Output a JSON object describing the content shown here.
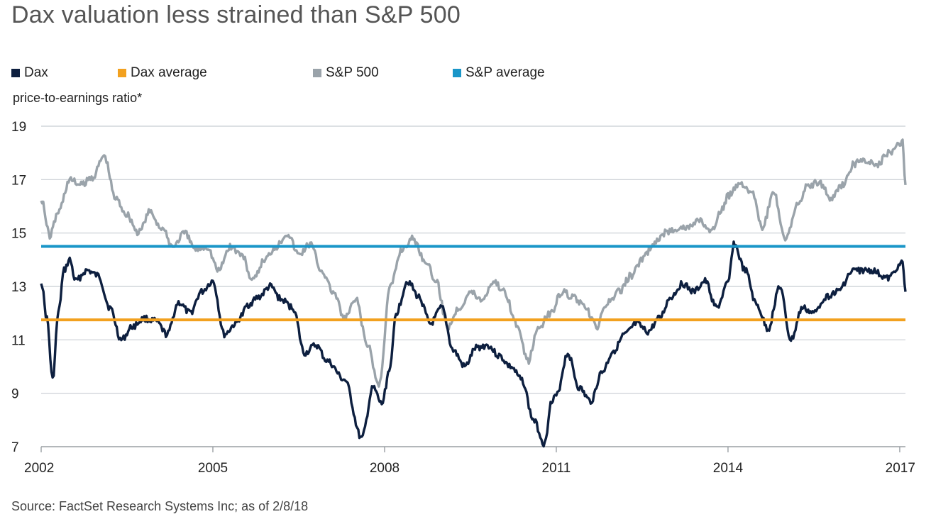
{
  "title": "Dax valuation less strained than S&P 500",
  "source": "Source: FactSet Research Systems Inc; as of 2/8/18",
  "colors": {
    "dax": "#0d1f3f",
    "dax_average": "#f2a11f",
    "sp500": "#9aa3aa",
    "sp_average": "#1a96c8",
    "grid": "#c8cdd2",
    "axis": "#9a9fa4"
  },
  "legend": [
    {
      "key": "dax",
      "label": "Dax"
    },
    {
      "key": "dax_average",
      "label": "Dax average"
    },
    {
      "key": "sp500",
      "label": "S&P 500"
    },
    {
      "key": "sp_average",
      "label": "S&P average"
    }
  ],
  "chart_data": {
    "type": "line",
    "title": "Dax valuation less strained than S&P 500",
    "xlabel": "",
    "ylabel": "price-to-earnings ratio*",
    "xlim": [
      2002.0,
      2017.1
    ],
    "ylim": [
      7,
      19
    ],
    "yticks": [
      7,
      9,
      11,
      13,
      15,
      17,
      19
    ],
    "xticks": [
      {
        "value": 2002,
        "label": "2002"
      },
      {
        "value": 2005,
        "label": "2005"
      },
      {
        "value": 2008,
        "label": "2008"
      },
      {
        "value": 2011,
        "label": "2011"
      },
      {
        "value": 2014,
        "label": "2014"
      },
      {
        "value": 2017,
        "label": "2017"
      }
    ],
    "grid": true,
    "legend_position": "top",
    "series": [
      {
        "name": "Dax",
        "key": "dax",
        "x": [
          2002.0,
          2002.1,
          2002.2,
          2002.3,
          2002.4,
          2002.5,
          2002.6,
          2002.8,
          2003.0,
          2003.2,
          2003.4,
          2003.6,
          2003.8,
          2004.0,
          2004.2,
          2004.4,
          2004.6,
          2004.8,
          2005.0,
          2005.2,
          2005.4,
          2005.5,
          2005.6,
          2005.8,
          2006.0,
          2006.2,
          2006.4,
          2006.6,
          2006.8,
          2007.0,
          2007.3,
          2007.6,
          2007.8,
          2007.95,
          2008.1,
          2008.2,
          2008.4,
          2008.6,
          2008.8,
          2009.0,
          2009.2,
          2009.4,
          2009.6,
          2009.8,
          2010.0,
          2010.2,
          2010.4,
          2010.6,
          2010.8,
          2010.9,
          2011.0,
          2011.2,
          2011.4,
          2011.6,
          2011.8,
          2012.0,
          2012.2,
          2012.4,
          2012.6,
          2012.8,
          2013.0,
          2013.2,
          2013.4,
          2013.6,
          2013.8,
          2014.0,
          2014.1,
          2014.3,
          2014.5,
          2014.7,
          2014.9,
          2015.1,
          2015.3,
          2015.5,
          2015.7,
          2015.9,
          2016.2,
          2016.5,
          2016.8,
          2017.0,
          2017.05,
          2017.1
        ],
        "values": [
          13.2,
          11.8,
          9.5,
          12.0,
          13.6,
          14.0,
          13.2,
          13.6,
          13.4,
          12.2,
          11.0,
          11.5,
          11.8,
          11.7,
          11.2,
          12.4,
          12.0,
          12.8,
          13.2,
          11.2,
          11.6,
          11.9,
          12.3,
          12.6,
          13.0,
          12.5,
          12.2,
          10.5,
          10.8,
          10.2,
          9.5,
          7.3,
          9.2,
          8.6,
          10.0,
          12.0,
          13.2,
          12.6,
          11.6,
          12.2,
          10.6,
          10.0,
          10.7,
          10.8,
          10.4,
          10.0,
          9.5,
          8.0,
          7.1,
          8.6,
          8.9,
          10.5,
          9.2,
          8.7,
          9.8,
          10.6,
          11.2,
          11.6,
          11.3,
          11.8,
          12.6,
          13.1,
          12.8,
          13.2,
          12.2,
          13.1,
          14.6,
          13.6,
          12.3,
          11.4,
          13.0,
          11.0,
          12.2,
          12.0,
          12.6,
          12.8,
          13.6,
          13.6,
          13.3,
          13.8,
          13.9,
          12.8
        ]
      },
      {
        "name": "Dax average",
        "key": "dax_average",
        "x": [
          2002.0,
          2017.1
        ],
        "values": [
          11.75,
          11.75
        ]
      },
      {
        "name": "S&P 500",
        "key": "sp500",
        "x": [
          2002.0,
          2002.15,
          2002.3,
          2002.5,
          2002.7,
          2002.9,
          2003.1,
          2003.3,
          2003.5,
          2003.7,
          2003.9,
          2004.1,
          2004.3,
          2004.5,
          2004.7,
          2004.9,
          2005.1,
          2005.3,
          2005.5,
          2005.7,
          2005.9,
          2006.1,
          2006.3,
          2006.5,
          2006.7,
          2006.9,
          2007.1,
          2007.3,
          2007.5,
          2007.7,
          2007.9,
          2008.1,
          2008.3,
          2008.5,
          2008.7,
          2008.9,
          2009.1,
          2009.3,
          2009.5,
          2009.7,
          2009.9,
          2010.1,
          2010.3,
          2010.5,
          2010.7,
          2010.9,
          2011.1,
          2011.3,
          2011.5,
          2011.7,
          2011.9,
          2012.1,
          2012.3,
          2012.5,
          2012.7,
          2012.9,
          2013.1,
          2013.3,
          2013.5,
          2013.7,
          2013.9,
          2014.0,
          2014.2,
          2014.4,
          2014.6,
          2014.8,
          2015.0,
          2015.2,
          2015.4,
          2015.6,
          2015.8,
          2016.0,
          2016.2,
          2016.4,
          2016.6,
          2016.8,
          2017.0,
          2017.05,
          2017.1
        ],
        "values": [
          16.3,
          14.9,
          15.8,
          17.0,
          16.8,
          17.1,
          17.9,
          16.3,
          15.7,
          15.0,
          15.8,
          15.2,
          14.5,
          15.0,
          14.4,
          14.5,
          13.6,
          14.5,
          14.2,
          13.2,
          14.0,
          14.5,
          15.0,
          14.2,
          14.6,
          13.6,
          12.8,
          11.8,
          12.5,
          10.8,
          9.3,
          13.0,
          14.4,
          14.8,
          14.0,
          13.2,
          11.5,
          12.2,
          12.8,
          12.5,
          13.2,
          12.8,
          11.6,
          10.2,
          11.5,
          12.0,
          12.8,
          12.6,
          12.2,
          11.5,
          12.4,
          12.8,
          13.4,
          14.0,
          14.6,
          15.0,
          15.2,
          15.2,
          15.5,
          15.0,
          15.9,
          16.4,
          16.9,
          16.6,
          15.2,
          16.5,
          14.7,
          16.0,
          16.8,
          16.9,
          16.3,
          16.8,
          17.6,
          17.7,
          17.5,
          18.0,
          18.3,
          18.5,
          16.8
        ]
      },
      {
        "name": "S&P average",
        "key": "sp_average",
        "x": [
          2002.0,
          2017.1
        ],
        "values": [
          14.5,
          14.5
        ]
      }
    ]
  }
}
